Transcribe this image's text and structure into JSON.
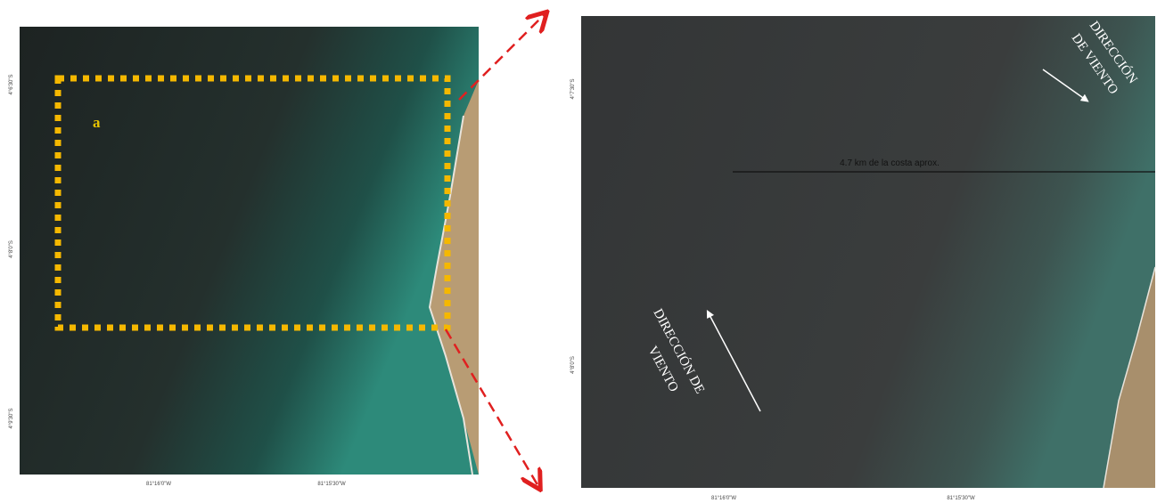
{
  "panel_a": {
    "label": "a",
    "lat_labels": [
      "4°6'30\"S",
      "4°8'0\"S",
      "4°9'30\"S"
    ],
    "lon_labels": [
      "81°16'0\"W",
      "81°15'30\"W"
    ]
  },
  "panel_b": {
    "distance_note": "4.7 km de la costa aprox.",
    "wind_top": [
      "DIRECCIÓN",
      "DE VIENTO"
    ],
    "wind_bottom": [
      "DIRECCIÓN DE",
      "VIENTO"
    ],
    "lat_labels": [
      "4°7'30\"S",
      "4°8'0\"S"
    ],
    "lon_labels": [
      "81°16'0\"W",
      "81°15'30\"W"
    ]
  }
}
